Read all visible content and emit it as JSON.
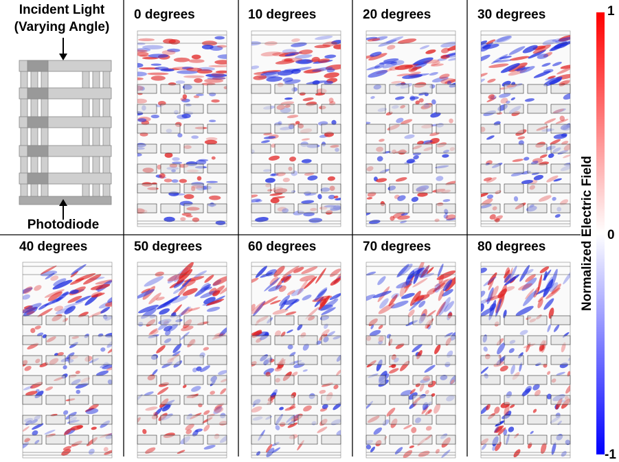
{
  "schematic": {
    "top_label_lines": [
      "Incident Light",
      "(Varying Angle)"
    ],
    "bottom_label": "Photodiode"
  },
  "panels": [
    {
      "label": "0 degrees"
    },
    {
      "label": "10 degrees"
    },
    {
      "label": "20 degrees"
    },
    {
      "label": "30 degrees"
    },
    {
      "label": "40 degrees"
    },
    {
      "label": "50 degrees"
    },
    {
      "label": "60 degrees"
    },
    {
      "label": "70 degrees"
    },
    {
      "label": "80 degrees"
    }
  ],
  "colorbar": {
    "label": "Normalized Electric Field",
    "ticks": [
      "1",
      "0",
      "-1"
    ]
  }
}
